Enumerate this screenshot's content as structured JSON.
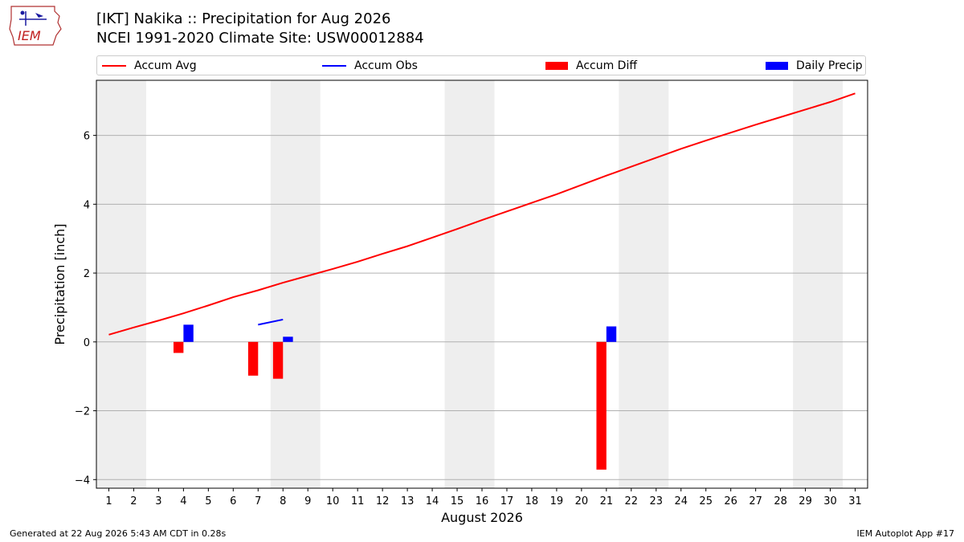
{
  "header": {
    "logo_text": "IEM",
    "title": "[IKT] Nakika :: Precipitation for Aug 2026",
    "subtitle": "NCEI 1991-2020 Climate Site: USW00012884"
  },
  "legend": {
    "items": [
      {
        "label": "Accum Avg",
        "color": "#ff0000",
        "kind": "line"
      },
      {
        "label": "Accum Obs",
        "color": "#0000ff",
        "kind": "line"
      },
      {
        "label": "Accum Diff",
        "color": "#ff0000",
        "kind": "box"
      },
      {
        "label": "Daily Precip",
        "color": "#0000ff",
        "kind": "box"
      }
    ]
  },
  "footer": {
    "generated": "Generated at 22 Aug 2026 5:43 AM CDT in 0.28s",
    "app": "IEM Autoplot App #17"
  },
  "chart_data": {
    "type": "bar",
    "xlabel": "August 2026",
    "ylabel": "Precipitation [inch]",
    "xlim": [
      0.5,
      31.5
    ],
    "ylim": [
      -4.25,
      7.6
    ],
    "yticks": [
      -4,
      -2,
      0,
      2,
      4,
      6
    ],
    "ytick_labels": [
      "−4",
      "−2",
      "0",
      "2",
      "4",
      "6"
    ],
    "xticks": [
      1,
      2,
      3,
      4,
      5,
      6,
      7,
      8,
      9,
      10,
      11,
      12,
      13,
      14,
      15,
      16,
      17,
      18,
      19,
      20,
      21,
      22,
      23,
      24,
      25,
      26,
      27,
      28,
      29,
      30,
      31
    ],
    "weekend_bands": [
      [
        0.5,
        2.5
      ],
      [
        7.5,
        9.5
      ],
      [
        14.5,
        16.5
      ],
      [
        21.5,
        23.5
      ],
      [
        28.5,
        30.5
      ]
    ],
    "grid": "y",
    "series": [
      {
        "name": "Accum Avg",
        "type": "line",
        "color": "#ff0000",
        "x": [
          1,
          2,
          3,
          4,
          5,
          6,
          7,
          8,
          9,
          10,
          11,
          12,
          13,
          14,
          15,
          16,
          17,
          18,
          19,
          20,
          21,
          22,
          23,
          24,
          25,
          26,
          27,
          28,
          29,
          30,
          31
        ],
        "values": [
          0.21,
          0.42,
          0.62,
          0.83,
          1.06,
          1.3,
          1.5,
          1.72,
          1.92,
          2.12,
          2.33,
          2.56,
          2.78,
          3.03,
          3.28,
          3.54,
          3.79,
          4.04,
          4.29,
          4.56,
          4.83,
          5.09,
          5.35,
          5.61,
          5.85,
          6.08,
          6.31,
          6.53,
          6.75,
          6.97,
          7.22
        ]
      },
      {
        "name": "Accum Obs",
        "type": "line",
        "color": "#0000ff",
        "x": [
          7,
          8
        ],
        "values": [
          0.5,
          0.65
        ]
      },
      {
        "name": "Accum Diff",
        "type": "bar",
        "color": "#ff0000",
        "offset": -0.2,
        "x": [
          4,
          7,
          8,
          21
        ],
        "values": [
          -0.32,
          -0.98,
          -1.07,
          -3.71
        ]
      },
      {
        "name": "Daily Precip",
        "type": "bar",
        "color": "#0000ff",
        "offset": 0.2,
        "x": [
          4,
          8,
          21
        ],
        "values": [
          0.5,
          0.15,
          0.45
        ]
      }
    ]
  }
}
